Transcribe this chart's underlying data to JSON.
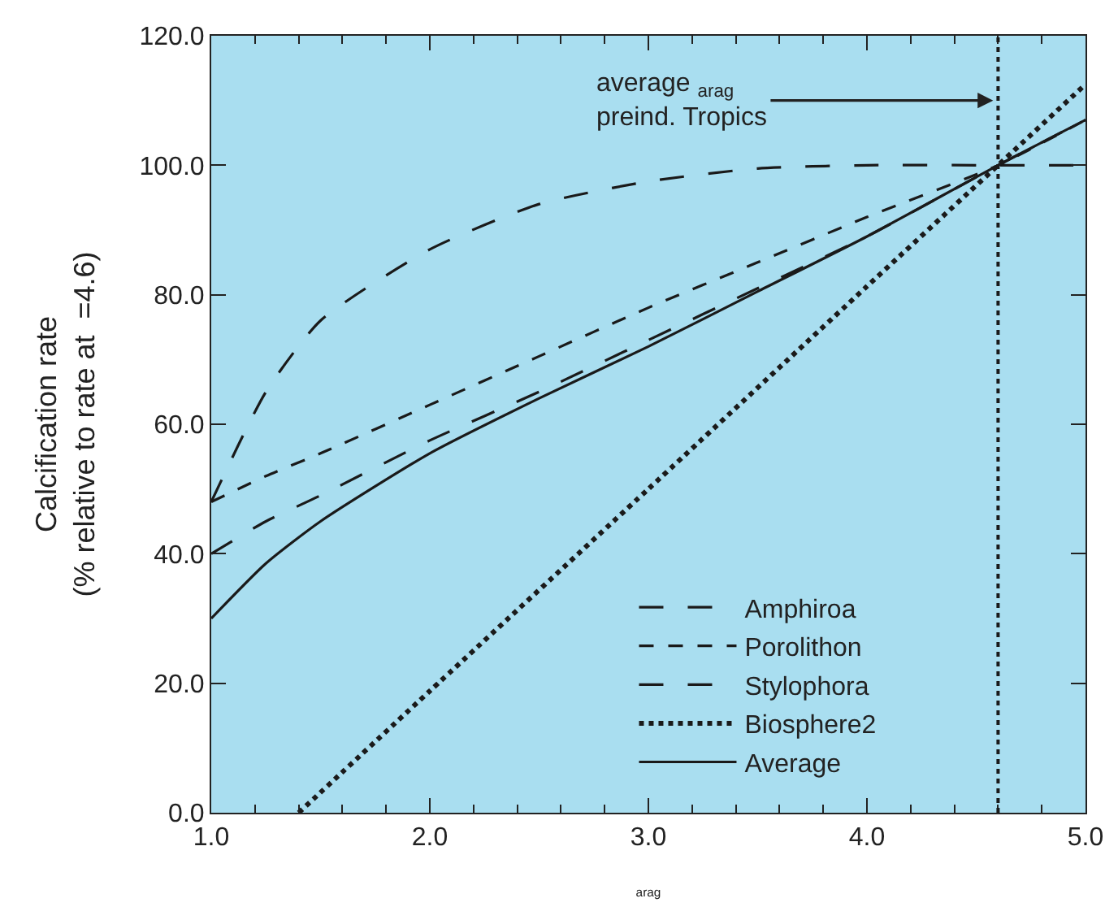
{
  "chart_data": {
    "type": "line",
    "xlabel": "$_{arag}$",
    "ylabel": "Calcification rate\n(% relative to rate at  =4.6)",
    "x": [
      1,
      1.25,
      1.5,
      2,
      2.5,
      3,
      3.5,
      4,
      4.6,
      5
    ],
    "xlim": [
      1,
      5
    ],
    "ylim": [
      0,
      120
    ],
    "xticks": [
      {
        "value": 1,
        "label": "1.0"
      },
      {
        "value": 2,
        "label": "2.0"
      },
      {
        "value": 3,
        "label": "3.0"
      },
      {
        "value": 4,
        "label": "4.0"
      },
      {
        "value": 5,
        "label": "5.0"
      }
    ],
    "yticks": [
      {
        "value": 0,
        "label": "0.0"
      },
      {
        "value": 20,
        "label": "20.0"
      },
      {
        "value": 40,
        "label": "40.0"
      },
      {
        "value": 60,
        "label": "60.0"
      },
      {
        "value": 80,
        "label": "80.0"
      },
      {
        "value": 100,
        "label": "100.0"
      },
      {
        "value": 120,
        "label": "120.0"
      }
    ],
    "legend": "bottom right",
    "marker": "none",
    "series": [
      {
        "name": "Amphiroa",
        "color": "#1a1a1a",
        "line_style": "longdash",
        "values": [
          48,
          65,
          76,
          87,
          94,
          97.5,
          99.5,
          100,
          100,
          100
        ]
      },
      {
        "name": "Porolithon",
        "color": "#1a1a1a",
        "line_style": "dashed",
        "values": [
          48,
          52,
          55.5,
          63,
          70.5,
          78,
          85,
          92,
          100,
          107
        ]
      },
      {
        "name": "Stylophora",
        "color": "#1a1a1a",
        "line_style": "longdash",
        "values": [
          40,
          45,
          49,
          57.5,
          65,
          73,
          81,
          89,
          100,
          107
        ]
      },
      {
        "name": "Biosphere2",
        "color": "#1a1a1a",
        "line_style": "dotted",
        "x": [
          1.4,
          2,
          3,
          4,
          4.6,
          5
        ],
        "values": [
          0,
          18.8,
          50,
          81.3,
          100,
          112.5
        ]
      },
      {
        "name": "Average",
        "color": "#1a1a1a",
        "line_style": "solid",
        "values": [
          30,
          38.5,
          45,
          55.5,
          64,
          72,
          80.5,
          89,
          100,
          107
        ]
      }
    ],
    "ref_lines": [
      {
        "axis": "x",
        "value": 4.6,
        "color": "#1a1a1a",
        "line_style": "dotted"
      }
    ],
    "annotations": [
      {
        "text": "average $_{arag}$\npreind. Tropics",
        "x": 4.6,
        "y": 110
      }
    ],
    "grid": false
  }
}
